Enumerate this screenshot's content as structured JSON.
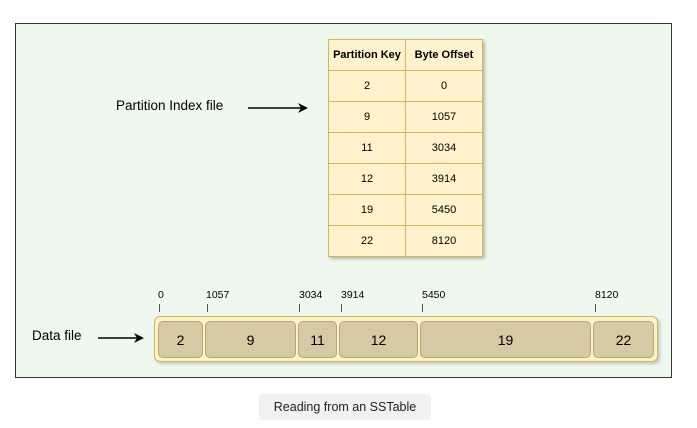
{
  "index": {
    "label": "Partition Index file",
    "headers": [
      "Partition Key",
      "Byte Offset"
    ],
    "rows": [
      {
        "key": "2",
        "offset": "0"
      },
      {
        "key": "9",
        "offset": "1057"
      },
      {
        "key": "11",
        "offset": "3034"
      },
      {
        "key": "12",
        "offset": "3914"
      },
      {
        "key": "19",
        "offset": "5450"
      },
      {
        "key": "22",
        "offset": "8120"
      }
    ]
  },
  "data_file": {
    "label": "Data file",
    "offsets": [
      "0",
      "1057",
      "3034",
      "3914",
      "5450",
      "8120"
    ],
    "segments": [
      "2",
      "9",
      "11",
      "12",
      "19",
      "22"
    ]
  },
  "caption": "Reading from an SSTable",
  "colors": {
    "background": "#eff8ee",
    "cell_fill": "#fff2cc",
    "cell_border": "#d6b656",
    "segment_fill": "#d6caa4"
  }
}
